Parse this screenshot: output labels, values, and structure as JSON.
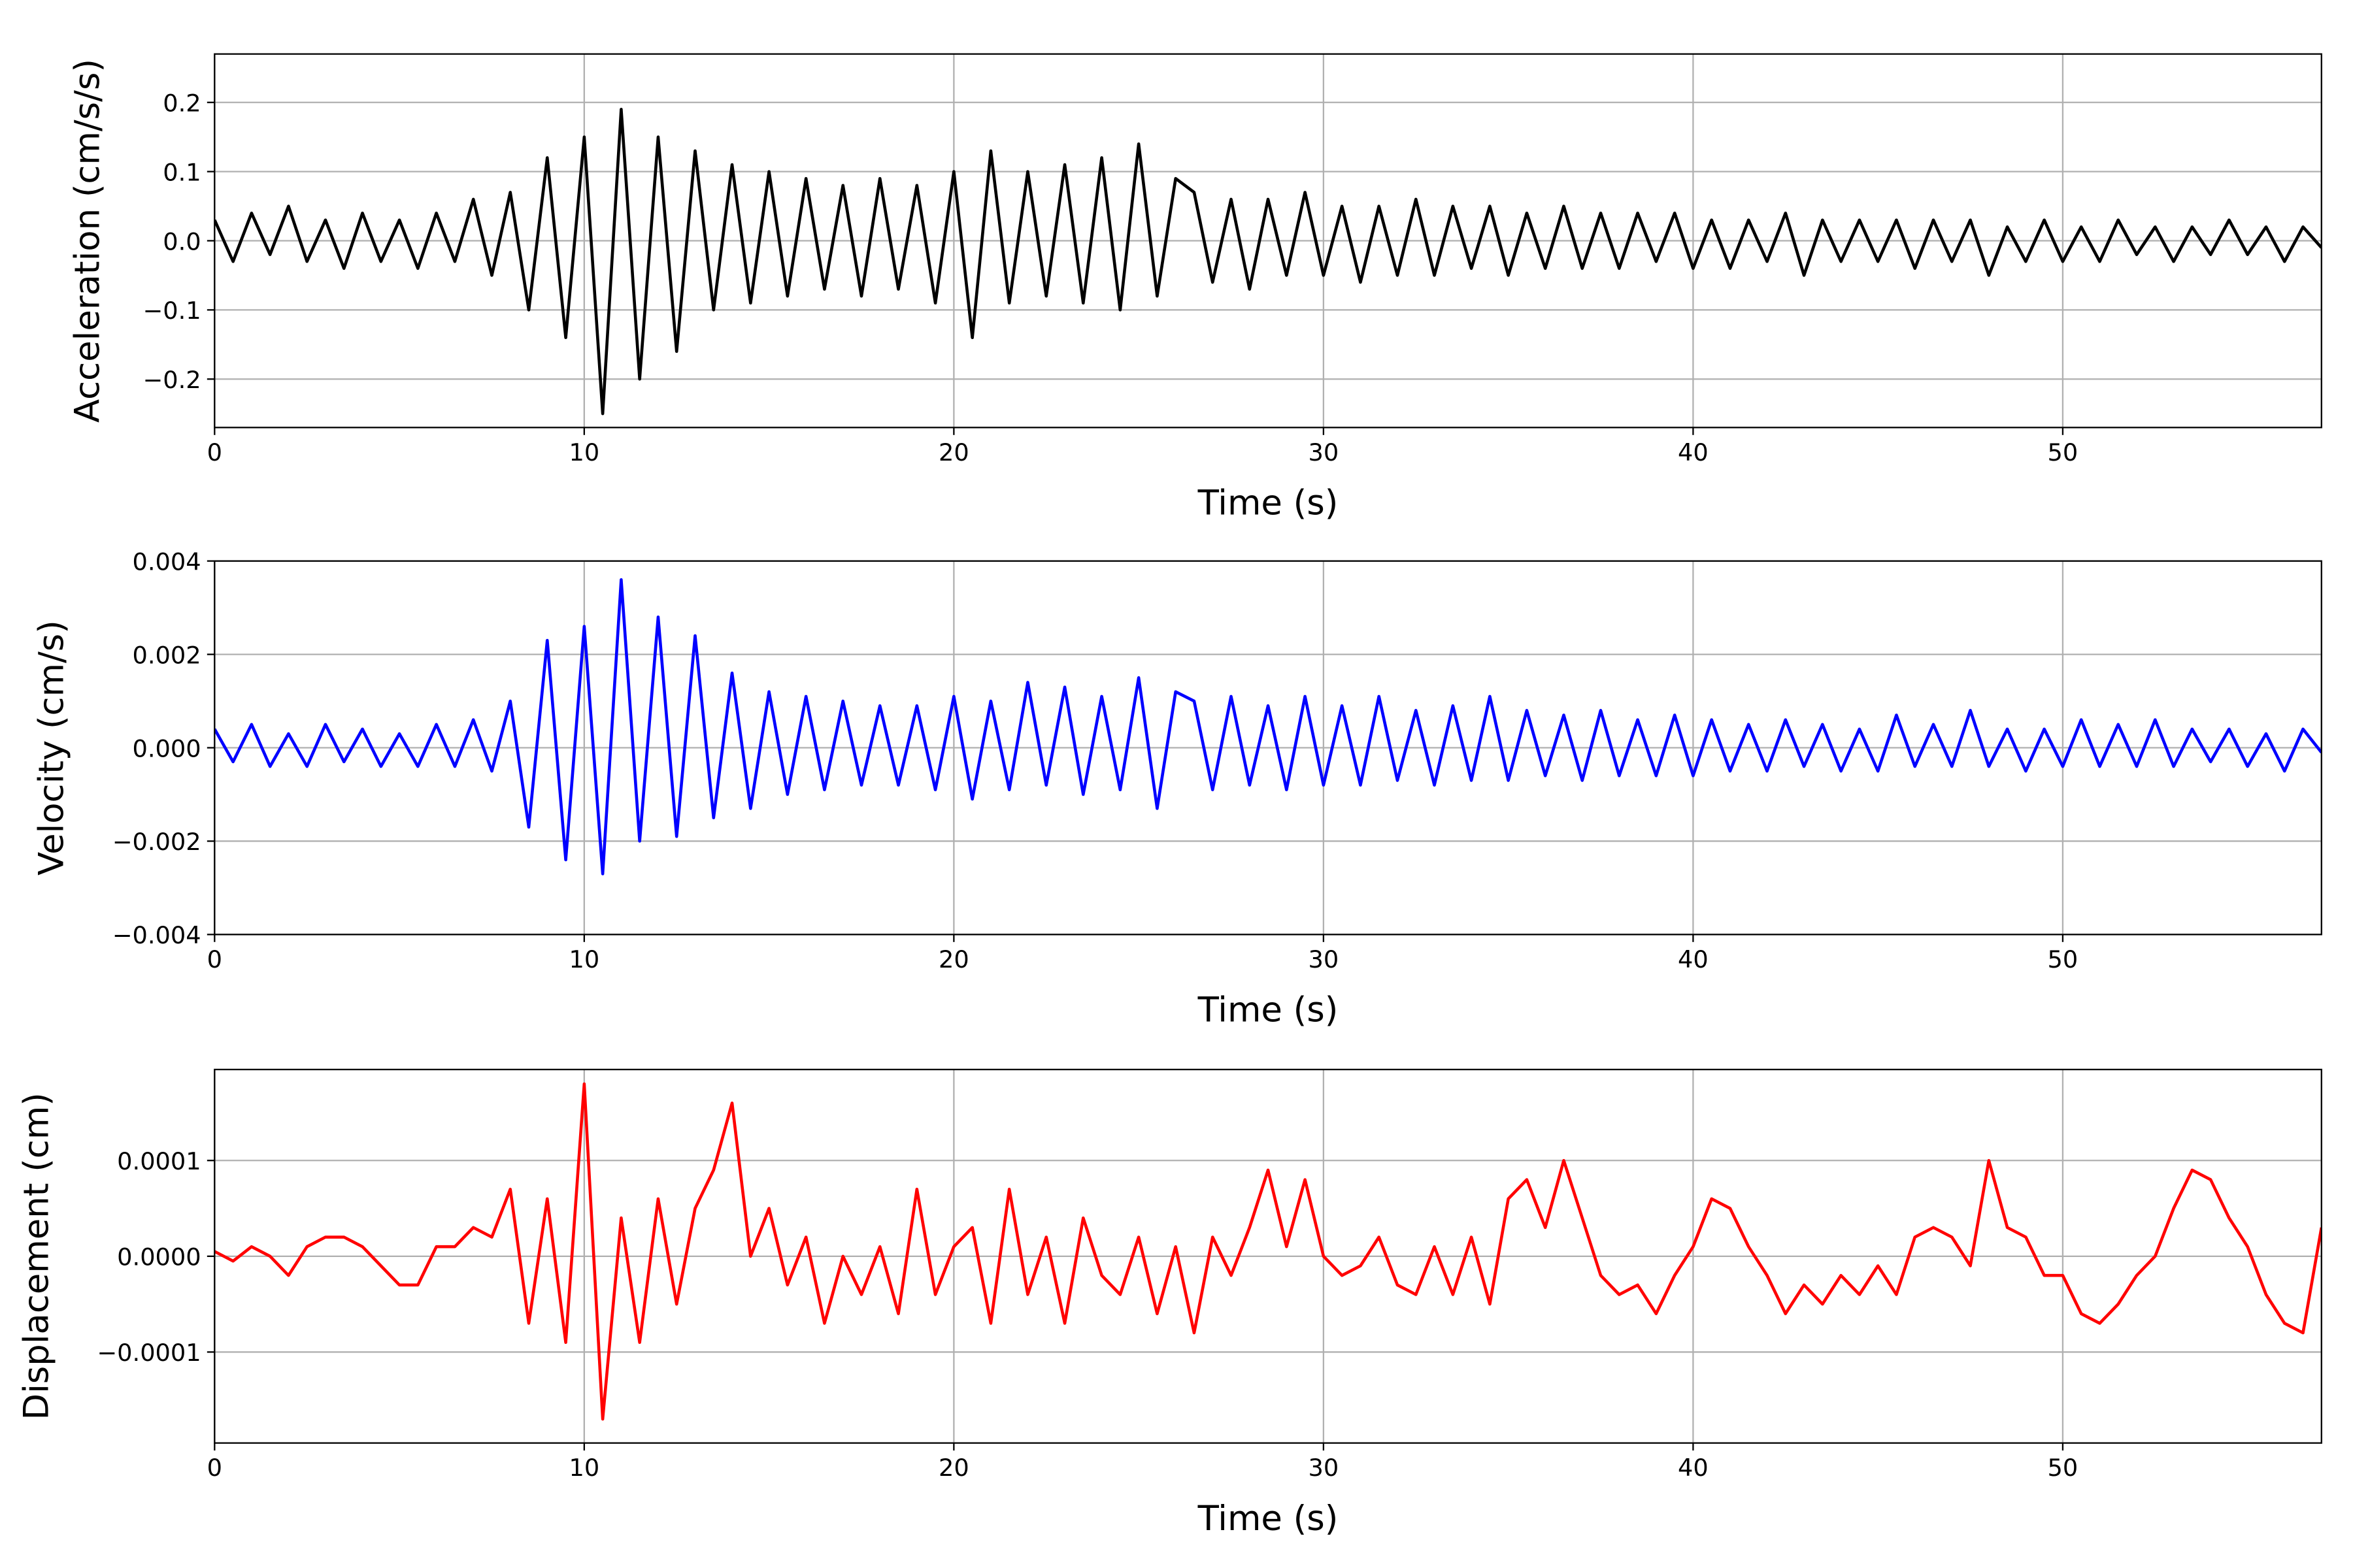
{
  "chart_data": [
    {
      "type": "line",
      "x_label": "Time (s)",
      "y_label": "Acceleration (cm/s/s)",
      "xlim": [
        0,
        57
      ],
      "xticks": [
        0,
        10,
        20,
        30,
        40,
        50
      ],
      "ylim": [
        -0.27,
        0.27
      ],
      "yticks": [
        {
          "value": -0.2,
          "label": "−0.2"
        },
        {
          "value": -0.1,
          "label": "−0.1"
        },
        {
          "value": 0,
          "label": "0.0"
        },
        0.1,
        0.2
      ],
      "grid": true,
      "x": [
        0,
        0.5,
        1,
        1.5,
        2,
        2.5,
        3,
        3.5,
        4,
        4.5,
        5,
        5.5,
        6,
        6.5,
        7,
        7.5,
        8,
        8.5,
        9,
        9.5,
        10,
        10.5,
        11,
        11.5,
        12,
        12.5,
        13,
        13.5,
        14,
        14.5,
        15,
        15.5,
        16,
        16.5,
        17,
        17.5,
        18,
        18.5,
        19,
        19.5,
        20,
        20.5,
        21,
        21.5,
        22,
        22.5,
        23,
        23.5,
        24,
        24.5,
        25,
        25.5,
        26,
        26.5,
        27,
        27.5,
        28,
        28.5,
        29,
        29.5,
        30,
        30.5,
        31,
        31.5,
        32,
        32.5,
        33,
        33.5,
        34,
        34.5,
        35,
        35.5,
        36,
        36.5,
        37,
        37.5,
        38,
        38.5,
        39,
        39.5,
        40,
        40.5,
        41,
        41.5,
        42,
        42.5,
        43,
        43.5,
        44,
        44.5,
        45,
        45.5,
        46,
        46.5,
        47,
        47.5,
        48,
        48.5,
        49,
        49.5,
        50,
        50.5,
        51,
        51.5,
        52,
        52.5,
        53,
        53.5,
        54,
        54.5,
        55,
        55.5,
        56,
        56.5,
        57
      ],
      "series": [
        {
          "color": "#000000",
          "values": [
            0.03,
            -0.03,
            0.04,
            -0.02,
            0.05,
            -0.03,
            0.03,
            -0.04,
            0.04,
            -0.03,
            0.03,
            -0.04,
            0.04,
            -0.03,
            0.06,
            -0.05,
            0.07,
            -0.1,
            0.12,
            -0.14,
            0.15,
            -0.25,
            0.19,
            -0.2,
            0.15,
            -0.16,
            0.13,
            -0.1,
            0.11,
            -0.09,
            0.1,
            -0.08,
            0.09,
            -0.07,
            0.08,
            -0.08,
            0.09,
            -0.07,
            0.08,
            -0.09,
            0.1,
            -0.14,
            0.13,
            -0.09,
            0.1,
            -0.08,
            0.11,
            -0.09,
            0.12,
            -0.1,
            0.14,
            -0.08,
            0.09,
            0.07,
            -0.06,
            0.06,
            -0.07,
            0.06,
            -0.05,
            0.07,
            -0.05,
            0.05,
            -0.06,
            0.05,
            -0.05,
            0.06,
            -0.05,
            0.05,
            -0.04,
            0.05,
            -0.05,
            0.04,
            -0.04,
            0.05,
            -0.04,
            0.04,
            -0.04,
            0.04,
            -0.03,
            0.04,
            -0.04,
            0.03,
            -0.04,
            0.03,
            -0.03,
            0.04,
            -0.05,
            0.03,
            -0.03,
            0.03,
            -0.03,
            0.03,
            -0.04,
            0.03,
            -0.03,
            0.03,
            -0.05,
            0.02,
            -0.03,
            0.03,
            -0.03,
            0.02,
            -0.03,
            0.03,
            -0.02,
            0.02,
            -0.03,
            0.02,
            -0.02,
            0.03,
            -0.02,
            0.02,
            -0.03,
            0.02,
            -0.01
          ]
        }
      ]
    },
    {
      "type": "line",
      "x_label": "Time (s)",
      "y_label": "Velocity (cm/s)",
      "xlim": [
        0,
        57
      ],
      "xticks": [
        0,
        10,
        20,
        30,
        40,
        50
      ],
      "ylim": [
        -0.004,
        0.004
      ],
      "yticks": [
        {
          "value": -0.004,
          "label": "−0.004"
        },
        {
          "value": -0.002,
          "label": "−0.002"
        },
        {
          "value": 0,
          "label": "0.000"
        },
        0.002,
        0.004
      ],
      "grid": true,
      "x": [
        0,
        0.5,
        1,
        1.5,
        2,
        2.5,
        3,
        3.5,
        4,
        4.5,
        5,
        5.5,
        6,
        6.5,
        7,
        7.5,
        8,
        8.5,
        9,
        9.5,
        10,
        10.5,
        11,
        11.5,
        12,
        12.5,
        13,
        13.5,
        14,
        14.5,
        15,
        15.5,
        16,
        16.5,
        17,
        17.5,
        18,
        18.5,
        19,
        19.5,
        20,
        20.5,
        21,
        21.5,
        22,
        22.5,
        23,
        23.5,
        24,
        24.5,
        25,
        25.5,
        26,
        26.5,
        27,
        27.5,
        28,
        28.5,
        29,
        29.5,
        30,
        30.5,
        31,
        31.5,
        32,
        32.5,
        33,
        33.5,
        34,
        34.5,
        35,
        35.5,
        36,
        36.5,
        37,
        37.5,
        38,
        38.5,
        39,
        39.5,
        40,
        40.5,
        41,
        41.5,
        42,
        42.5,
        43,
        43.5,
        44,
        44.5,
        45,
        45.5,
        46,
        46.5,
        47,
        47.5,
        48,
        48.5,
        49,
        49.5,
        50,
        50.5,
        51,
        51.5,
        52,
        52.5,
        53,
        53.5,
        54,
        54.5,
        55,
        55.5,
        56,
        56.5,
        57
      ],
      "series": [
        {
          "color": "#0000ff",
          "values": [
            0.0004,
            -0.0003,
            0.0005,
            -0.0004,
            0.0003,
            -0.0004,
            0.0005,
            -0.0003,
            0.0004,
            -0.0004,
            0.0003,
            -0.0004,
            0.0005,
            -0.0004,
            0.0006,
            -0.0005,
            0.001,
            -0.0017,
            0.0023,
            -0.0024,
            0.0026,
            -0.0027,
            0.0036,
            -0.002,
            0.0028,
            -0.0019,
            0.0024,
            -0.0015,
            0.0016,
            -0.0013,
            0.0012,
            -0.001,
            0.0011,
            -0.0009,
            0.001,
            -0.0008,
            0.0009,
            -0.0008,
            0.0009,
            -0.0009,
            0.0011,
            -0.0011,
            0.001,
            -0.0009,
            0.0014,
            -0.0008,
            0.0013,
            -0.001,
            0.0011,
            -0.0009,
            0.0015,
            -0.0013,
            0.0012,
            0.001,
            -0.0009,
            0.0011,
            -0.0008,
            0.0009,
            -0.0009,
            0.0011,
            -0.0008,
            0.0009,
            -0.0008,
            0.0011,
            -0.0007,
            0.0008,
            -0.0008,
            0.0009,
            -0.0007,
            0.0011,
            -0.0007,
            0.0008,
            -0.0006,
            0.0007,
            -0.0007,
            0.0008,
            -0.0006,
            0.0006,
            -0.0006,
            0.0007,
            -0.0006,
            0.0006,
            -0.0005,
            0.0005,
            -0.0005,
            0.0006,
            -0.0004,
            0.0005,
            -0.0005,
            0.0004,
            -0.0005,
            0.0007,
            -0.0004,
            0.0005,
            -0.0004,
            0.0008,
            -0.0004,
            0.0004,
            -0.0005,
            0.0004,
            -0.0004,
            0.0006,
            -0.0004,
            0.0005,
            -0.0004,
            0.0006,
            -0.0004,
            0.0004,
            -0.0003,
            0.0004,
            -0.0004,
            0.0003,
            -0.0005,
            0.0004,
            -0.0001
          ]
        }
      ]
    },
    {
      "type": "line",
      "x_label": "Time (s)",
      "y_label": "Displacement (cm)",
      "xlim": [
        0,
        57
      ],
      "xticks": [
        0,
        10,
        20,
        30,
        40,
        50
      ],
      "ylim": [
        -0.000195,
        0.000195
      ],
      "yticks": [
        {
          "value": -0.0001,
          "label": "−0.0001"
        },
        {
          "value": 0,
          "label": "0.0000"
        },
        0.0001
      ],
      "grid": true,
      "x": [
        0,
        0.5,
        1,
        1.5,
        2,
        2.5,
        3,
        3.5,
        4,
        4.5,
        5,
        5.5,
        6,
        6.5,
        7,
        7.5,
        8,
        8.5,
        9,
        9.5,
        10,
        10.5,
        11,
        11.5,
        12,
        12.5,
        13,
        13.5,
        14,
        14.5,
        15,
        15.5,
        16,
        16.5,
        17,
        17.5,
        18,
        18.5,
        19,
        19.5,
        20,
        20.5,
        21,
        21.5,
        22,
        22.5,
        23,
        23.5,
        24,
        24.5,
        25,
        25.5,
        26,
        26.5,
        27,
        27.5,
        28,
        28.5,
        29,
        29.5,
        30,
        30.5,
        31,
        31.5,
        32,
        32.5,
        33,
        33.5,
        34,
        34.5,
        35,
        35.5,
        36,
        36.5,
        37,
        37.5,
        38,
        38.5,
        39,
        39.5,
        40,
        40.5,
        41,
        41.5,
        42,
        42.5,
        43,
        43.5,
        44,
        44.5,
        45,
        45.5,
        46,
        46.5,
        47,
        47.5,
        48,
        48.5,
        49,
        49.5,
        50,
        50.5,
        51,
        51.5,
        52,
        52.5,
        53,
        53.5,
        54,
        54.5,
        55,
        55.5,
        56,
        56.5,
        57
      ],
      "series": [
        {
          "color": "#ff0000",
          "values": [
            5e-06,
            -5e-06,
            1e-05,
            0,
            -2e-05,
            1e-05,
            2e-05,
            2e-05,
            1e-05,
            -1e-05,
            -3e-05,
            -3e-05,
            1e-05,
            1e-05,
            3e-05,
            2e-05,
            7e-05,
            -7e-05,
            6e-05,
            -9e-05,
            0.00018,
            -0.00017,
            4e-05,
            -9e-05,
            6e-05,
            -5e-05,
            5e-05,
            9e-05,
            0.00016,
            0,
            5e-05,
            -3e-05,
            2e-05,
            -7e-05,
            0,
            -4e-05,
            1e-05,
            -6e-05,
            7e-05,
            -4e-05,
            1e-05,
            3e-05,
            -7e-05,
            7e-05,
            -4e-05,
            2e-05,
            -7e-05,
            4e-05,
            -2e-05,
            -4e-05,
            2e-05,
            -6e-05,
            1e-05,
            -8e-05,
            2e-05,
            -2e-05,
            3e-05,
            9e-05,
            1e-05,
            8e-05,
            0,
            -2e-05,
            -1e-05,
            2e-05,
            -3e-05,
            -4e-05,
            1e-05,
            -4e-05,
            2e-05,
            -5e-05,
            6e-05,
            8e-05,
            3e-05,
            0.0001,
            4e-05,
            -2e-05,
            -4e-05,
            -3e-05,
            -6e-05,
            -2e-05,
            1e-05,
            6e-05,
            5e-05,
            1e-05,
            -2e-05,
            -6e-05,
            -3e-05,
            -5e-05,
            -2e-05,
            -4e-05,
            -1e-05,
            -4e-05,
            2e-05,
            3e-05,
            2e-05,
            -1e-05,
            0.0001,
            3e-05,
            2e-05,
            -2e-05,
            -2e-05,
            -6e-05,
            -7e-05,
            -5e-05,
            -2e-05,
            0,
            5e-05,
            9e-05,
            8e-05,
            4e-05,
            1e-05,
            -4e-05,
            -7e-05,
            -8e-05,
            3e-05
          ]
        }
      ]
    }
  ]
}
